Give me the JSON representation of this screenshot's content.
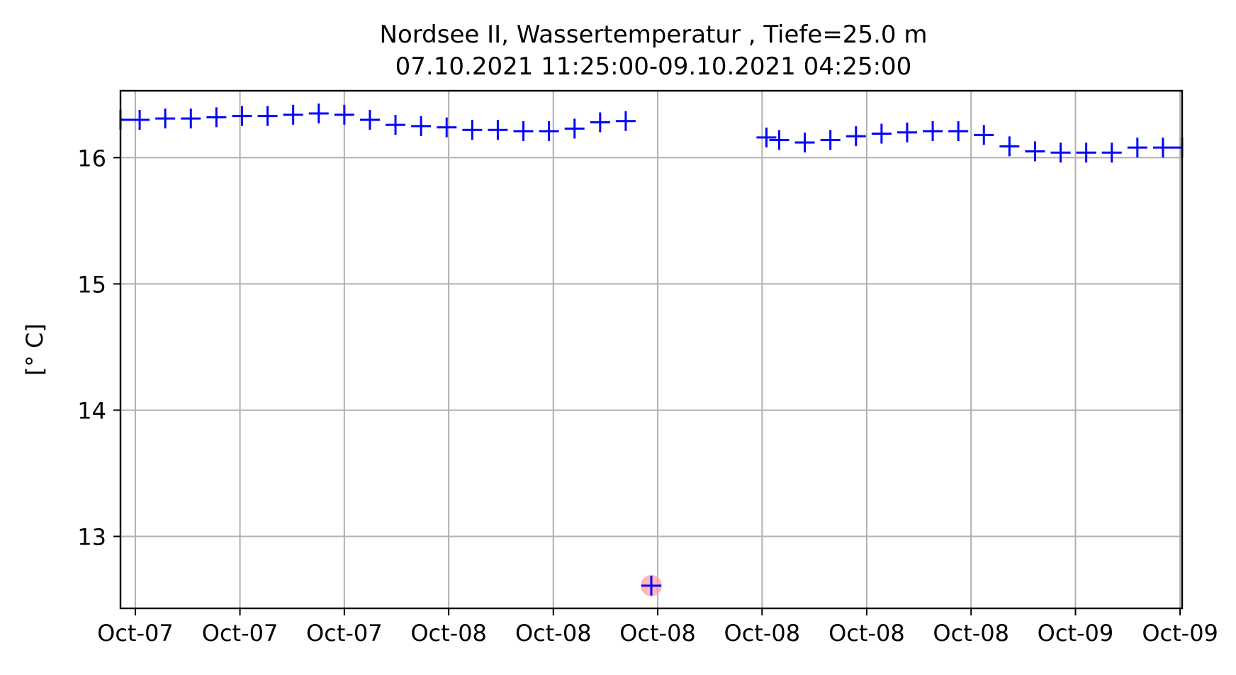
{
  "chart_data": {
    "type": "scatter",
    "title": "Nordsee II, Wassertemperatur , Tiefe=25.0 m",
    "subtitle": "07.10.2021 11:25:00-09.10.2021 04:25:00",
    "xlabel": "",
    "ylabel": "[° C]",
    "x_unit": "hours from 07.10.2021 11:25",
    "xlim": [
      -0.5,
      41.0
    ],
    "ylim": [
      12.43,
      16.53
    ],
    "yticks": [
      13,
      14,
      15,
      16
    ],
    "xticks": [
      {
        "x": 0.08,
        "label": "Oct-07"
      },
      {
        "x": 4.17,
        "label": "Oct-07"
      },
      {
        "x": 8.25,
        "label": "Oct-07"
      },
      {
        "x": 12.33,
        "label": "Oct-08"
      },
      {
        "x": 16.42,
        "label": "Oct-08"
      },
      {
        "x": 20.5,
        "label": "Oct-08"
      },
      {
        "x": 24.58,
        "label": "Oct-08"
      },
      {
        "x": 28.67,
        "label": "Oct-08"
      },
      {
        "x": 32.75,
        "label": "Oct-08"
      },
      {
        "x": 36.83,
        "label": "Oct-09"
      },
      {
        "x": 40.92,
        "label": "Oct-09"
      }
    ],
    "grid": true,
    "marker": "+",
    "marker_color": "#0000ff",
    "flag_color": "#ff9999",
    "series": [
      {
        "points": [
          {
            "x": -0.5,
            "y": 16.3
          },
          {
            "x": 0.25,
            "y": 16.3
          },
          {
            "x": 1.25,
            "y": 16.31
          },
          {
            "x": 2.25,
            "y": 16.31
          },
          {
            "x": 3.25,
            "y": 16.32
          },
          {
            "x": 4.25,
            "y": 16.33
          },
          {
            "x": 5.25,
            "y": 16.33
          },
          {
            "x": 6.25,
            "y": 16.34
          },
          {
            "x": 7.25,
            "y": 16.35
          },
          {
            "x": 8.25,
            "y": 16.34
          },
          {
            "x": 9.25,
            "y": 16.3
          },
          {
            "x": 10.25,
            "y": 16.26
          },
          {
            "x": 11.25,
            "y": 16.25
          },
          {
            "x": 12.25,
            "y": 16.24
          },
          {
            "x": 13.25,
            "y": 16.22
          },
          {
            "x": 14.25,
            "y": 16.22
          },
          {
            "x": 15.25,
            "y": 16.21
          },
          {
            "x": 16.25,
            "y": 16.21
          },
          {
            "x": 17.25,
            "y": 16.23
          },
          {
            "x": 18.25,
            "y": 16.28
          },
          {
            "x": 19.25,
            "y": 16.29
          },
          {
            "x": 20.25,
            "y": 12.61,
            "flagged": true
          },
          {
            "x": 24.75,
            "y": 16.16
          },
          {
            "x": 25.25,
            "y": 16.14
          },
          {
            "x": 26.25,
            "y": 16.12
          },
          {
            "x": 27.25,
            "y": 16.14
          },
          {
            "x": 28.25,
            "y": 16.17
          },
          {
            "x": 29.25,
            "y": 16.19
          },
          {
            "x": 30.25,
            "y": 16.2
          },
          {
            "x": 31.25,
            "y": 16.21
          },
          {
            "x": 32.25,
            "y": 16.21
          },
          {
            "x": 33.25,
            "y": 16.18
          },
          {
            "x": 34.25,
            "y": 16.09
          },
          {
            "x": 35.25,
            "y": 16.05
          },
          {
            "x": 36.25,
            "y": 16.04
          },
          {
            "x": 37.25,
            "y": 16.04
          },
          {
            "x": 38.25,
            "y": 16.04
          },
          {
            "x": 39.25,
            "y": 16.08
          },
          {
            "x": 40.25,
            "y": 16.08
          },
          {
            "x": 41.0,
            "y": 16.08
          }
        ]
      }
    ]
  }
}
